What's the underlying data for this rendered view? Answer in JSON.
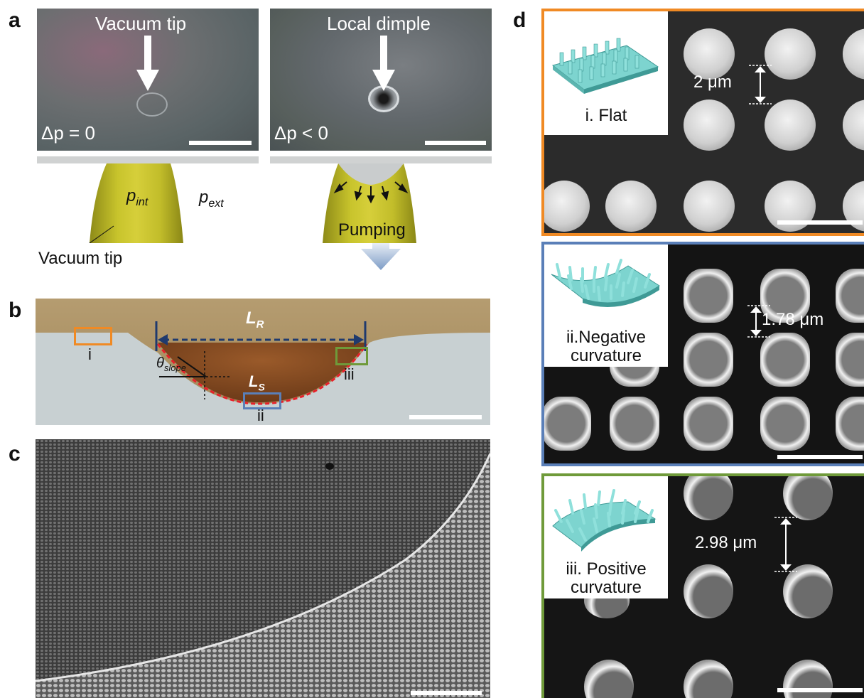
{
  "panel_labels": {
    "a": "a",
    "b": "b",
    "c": "c",
    "d": "d"
  },
  "panel_a": {
    "left_image": {
      "title": "Vacuum tip",
      "pressure": "Δp = 0"
    },
    "right_image": {
      "title": "Local dimple",
      "pressure": "Δp < 0"
    },
    "schematic": {
      "p_int": "p",
      "p_int_sub": "int",
      "p_ext": "p",
      "p_ext_sub": "ext",
      "tip_label": "Vacuum tip",
      "pumping_label": "Pumping"
    }
  },
  "panel_b": {
    "L_R": "L",
    "L_R_sub": "R",
    "L_S": "L",
    "L_S_sub": "S",
    "theta": "θ",
    "theta_sub": "slope",
    "box_i": "i",
    "box_ii": "ii",
    "box_iii": "iii",
    "colors": {
      "i": "#f08a24",
      "ii": "#5a7fb8",
      "iii": "#6f9a3a",
      "dash_line": "#1f3a6e",
      "profile": "#e8202a"
    }
  },
  "panel_d": {
    "flat": {
      "label": "i. Flat",
      "spacing": "2 μm",
      "border": "#f08a24"
    },
    "negative": {
      "label_line1": "ii.Negative",
      "label_line2": "curvature",
      "spacing": "1.78 μm",
      "border": "#5a7fb8"
    },
    "positive": {
      "label_line1": "iii. Positive",
      "label_line2": "curvature",
      "spacing": "2.98 μm",
      "border": "#6f9a3a"
    }
  }
}
